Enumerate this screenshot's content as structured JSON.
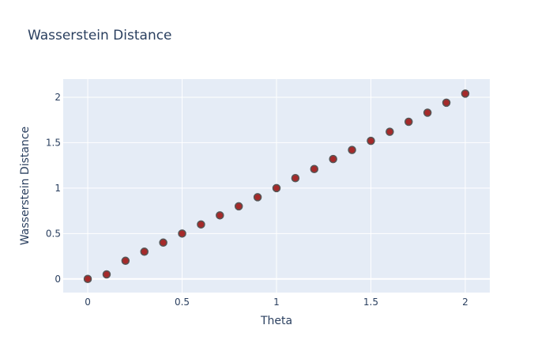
{
  "chart_data": {
    "type": "scatter",
    "title": "Wasserstein Distance",
    "xlabel": "Theta",
    "ylabel": "Wasserstein Distance",
    "xlim": [
      -0.13,
      2.13
    ],
    "ylim": [
      -0.15,
      2.2
    ],
    "xticks": [
      0,
      0.5,
      1,
      1.5,
      2
    ],
    "xtick_labels": [
      "0",
      "0.5",
      "1",
      "1.5",
      "2"
    ],
    "yticks": [
      0,
      0.5,
      1,
      1.5,
      2
    ],
    "ytick_labels": [
      "0",
      "0.5",
      "1",
      "1.5",
      "2"
    ],
    "grid": true,
    "colors": {
      "plot_bg": "#E5ECF6",
      "grid": "#ffffff",
      "marker_fill": "#A52A2A",
      "marker_line": "#555555",
      "text": "#2a3f5f"
    },
    "series": [
      {
        "x": [
          0,
          0.1,
          0.2,
          0.3,
          0.4,
          0.5,
          0.6,
          0.7,
          0.8,
          0.9,
          1.0,
          1.1,
          1.2,
          1.3,
          1.4,
          1.5,
          1.6,
          1.7,
          1.8,
          1.9,
          2.0
        ],
        "y": [
          0.0,
          0.05,
          0.2,
          0.3,
          0.4,
          0.5,
          0.6,
          0.7,
          0.8,
          0.9,
          1.0,
          1.11,
          1.21,
          1.32,
          1.42,
          1.52,
          1.62,
          1.73,
          1.83,
          1.94,
          2.04
        ]
      }
    ]
  }
}
